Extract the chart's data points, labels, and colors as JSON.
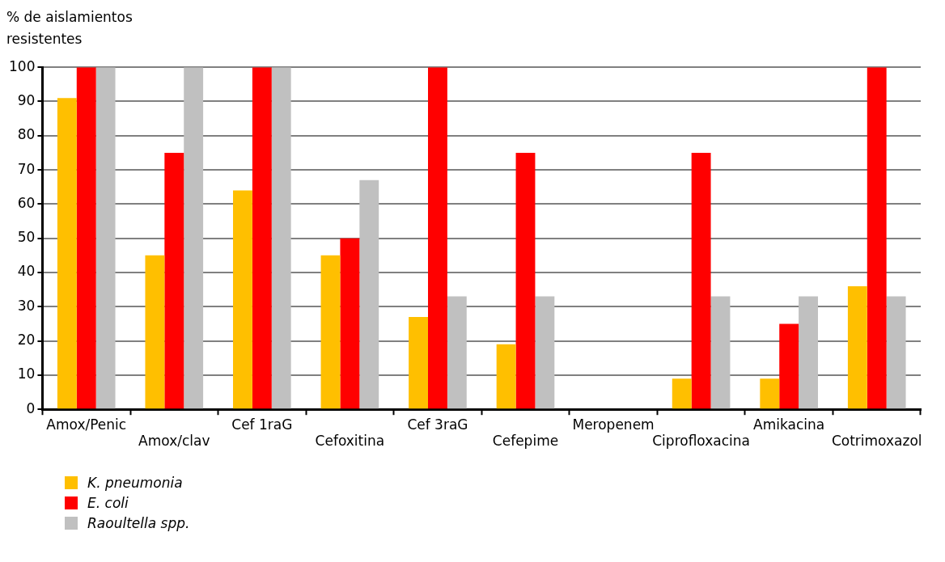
{
  "chart_data": {
    "type": "bar",
    "ylabel": "% de aislamientos resistentes",
    "categories": [
      "Amox/Penic",
      "Amox/clav",
      "Cef 1raG",
      "Cefoxitina",
      "Cef 3raG",
      "Cefepime",
      "Meropenem",
      "Ciprofloxacina",
      "Amikacina",
      "Cotrimoxazol"
    ],
    "series": [
      {
        "name": "K. pneumonia",
        "color": "#ffbf00",
        "values": [
          91,
          45,
          64,
          45,
          27,
          19,
          0,
          9,
          9,
          36
        ]
      },
      {
        "name": "E. coli",
        "color": "#ff0000",
        "values": [
          100,
          75,
          100,
          50,
          100,
          75,
          0,
          75,
          25,
          100
        ]
      },
      {
        "name": "Raoultella spp.",
        "color": "#c0c0c0",
        "values": [
          100,
          100,
          100,
          67,
          33,
          33,
          0,
          33,
          33,
          33
        ]
      }
    ],
    "ylim": [
      0,
      100
    ],
    "yticks": [
      0,
      10,
      20,
      30,
      40,
      50,
      60,
      70,
      80,
      90,
      100
    ],
    "grid": "y",
    "legend": "bottom left"
  }
}
